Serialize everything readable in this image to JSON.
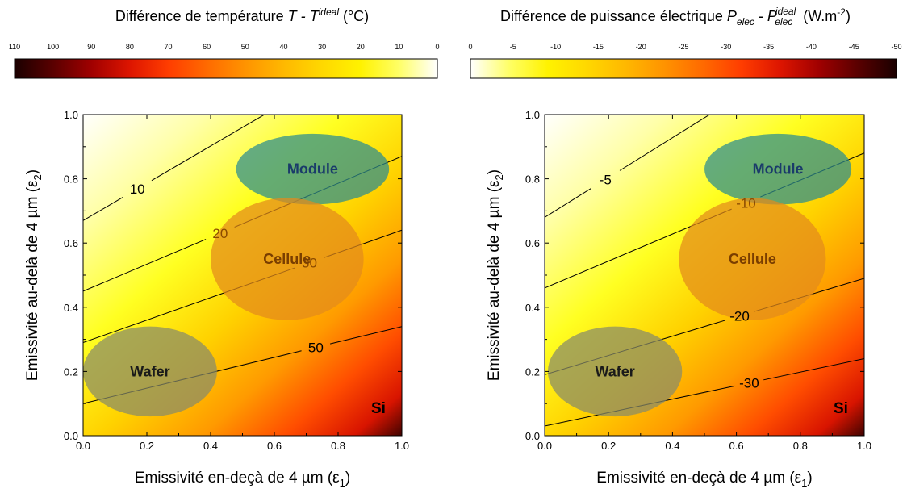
{
  "chart_data": [
    {
      "type": "heatmap",
      "title_main": "Différence de température",
      "title_expr": "T - T",
      "title_sup": "ideal",
      "title_unit": "(°C)",
      "colorbar": {
        "ticks": [
          110,
          100,
          90,
          80,
          70,
          60,
          50,
          40,
          30,
          20,
          10,
          0
        ],
        "range": [
          0,
          110
        ],
        "colors": [
          "#1a0000",
          "#5a0000",
          "#a00000",
          "#dd1500",
          "#ff3d00",
          "#ff6a00",
          "#ff9300",
          "#ffb800",
          "#ffd800",
          "#fff200",
          "#ffff66",
          "#ffffff"
        ]
      },
      "xlabel": "Emissivité en-deçà de 4 µm (ε",
      "xlabel_sub": "1",
      "ylabel": "Emissivité au-delà de 4 µm (ε",
      "ylabel_sub": "2",
      "xlim": [
        0.0,
        1.0
      ],
      "ylim": [
        0.0,
        1.0
      ],
      "xticks": [
        "0.0",
        "0.2",
        "0.4",
        "0.6",
        "0.8",
        "1.0"
      ],
      "yticks": [
        "0.0",
        "0.2",
        "0.4",
        "0.6",
        "0.8",
        "1.0"
      ],
      "material_label": "Si",
      "contours": [
        {
          "label": "10",
          "intercept": 0.67,
          "slope": 0.58,
          "label_x": 0.17,
          "label_color": "#000000"
        },
        {
          "label": "20",
          "intercept": 0.45,
          "slope": 0.42,
          "label_x": 0.43,
          "label_color": "#8b4a00"
        },
        {
          "label": "30",
          "intercept": 0.29,
          "slope": 0.35,
          "label_x": 0.71,
          "label_color": "#8b4a00"
        },
        {
          "label": "50",
          "intercept": 0.1,
          "slope": 0.24,
          "label_x": 0.73,
          "label_color": "#000000"
        }
      ],
      "regions": [
        {
          "name": "Module",
          "cx": 0.72,
          "cy": 0.83,
          "rx": 0.24,
          "ry": 0.11,
          "color": "#2a8c90",
          "label_color": "#1a3b6a"
        },
        {
          "name": "Cellule",
          "cx": 0.64,
          "cy": 0.55,
          "rx": 0.24,
          "ry": 0.19,
          "color": "#e38a1c",
          "label_color": "#7a3e00"
        },
        {
          "name": "Wafer",
          "cx": 0.21,
          "cy": 0.2,
          "rx": 0.21,
          "ry": 0.14,
          "color": "#888a6a",
          "label_color": "#1a1a1a"
        }
      ]
    },
    {
      "type": "heatmap",
      "title_main": "Différence de puissance électrique",
      "title_expr": "P",
      "title_sub1": "elec",
      "title_mid": " - P",
      "title_sub2": "elec",
      "title_sup": "ideal",
      "title_unit": "(W.m",
      "title_unit_sup": "-2",
      "title_unit_end": ")",
      "colorbar": {
        "ticks": [
          0,
          -5,
          -10,
          -15,
          -20,
          -25,
          -30,
          -35,
          -40,
          -45,
          -50
        ],
        "range": [
          -50,
          0
        ],
        "colors": [
          "#ffffff",
          "#ffff66",
          "#fff200",
          "#ffd800",
          "#ffb800",
          "#ff9300",
          "#ff6a00",
          "#ff3d00",
          "#dd1500",
          "#a00000",
          "#5a0000",
          "#1a0000"
        ]
      },
      "xlabel": "Emissivité en-deçà de 4 µm (ε",
      "xlabel_sub": "1",
      "ylabel": "Emissivité au-delà de 4 µm (ε",
      "ylabel_sub": "2",
      "xlim": [
        0.0,
        1.0
      ],
      "ylim": [
        0.0,
        1.0
      ],
      "xticks": [
        "0.0",
        "0.2",
        "0.4",
        "0.6",
        "0.8",
        "1.0"
      ],
      "yticks": [
        "0.0",
        "0.2",
        "0.4",
        "0.6",
        "0.8",
        "1.0"
      ],
      "material_label": "Si",
      "contours": [
        {
          "label": "-5",
          "intercept": 0.68,
          "slope": 0.62,
          "label_x": 0.19,
          "label_color": "#000000"
        },
        {
          "label": "-10",
          "intercept": 0.46,
          "slope": 0.42,
          "label_x": 0.63,
          "label_color": "#8b4a00"
        },
        {
          "label": "-20",
          "intercept": 0.19,
          "slope": 0.3,
          "label_x": 0.61,
          "label_color": "#000000"
        },
        {
          "label": "-30",
          "intercept": 0.03,
          "slope": 0.21,
          "label_x": 0.64,
          "label_color": "#000000"
        }
      ],
      "regions": [
        {
          "name": "Module",
          "cx": 0.73,
          "cy": 0.83,
          "rx": 0.23,
          "ry": 0.11,
          "color": "#2a8c90",
          "label_color": "#1a3b6a"
        },
        {
          "name": "Cellule",
          "cx": 0.65,
          "cy": 0.55,
          "rx": 0.23,
          "ry": 0.19,
          "color": "#e38a1c",
          "label_color": "#7a3e00"
        },
        {
          "name": "Wafer",
          "cx": 0.22,
          "cy": 0.2,
          "rx": 0.21,
          "ry": 0.14,
          "color": "#888a6a",
          "label_color": "#1a1a1a"
        }
      ]
    }
  ]
}
